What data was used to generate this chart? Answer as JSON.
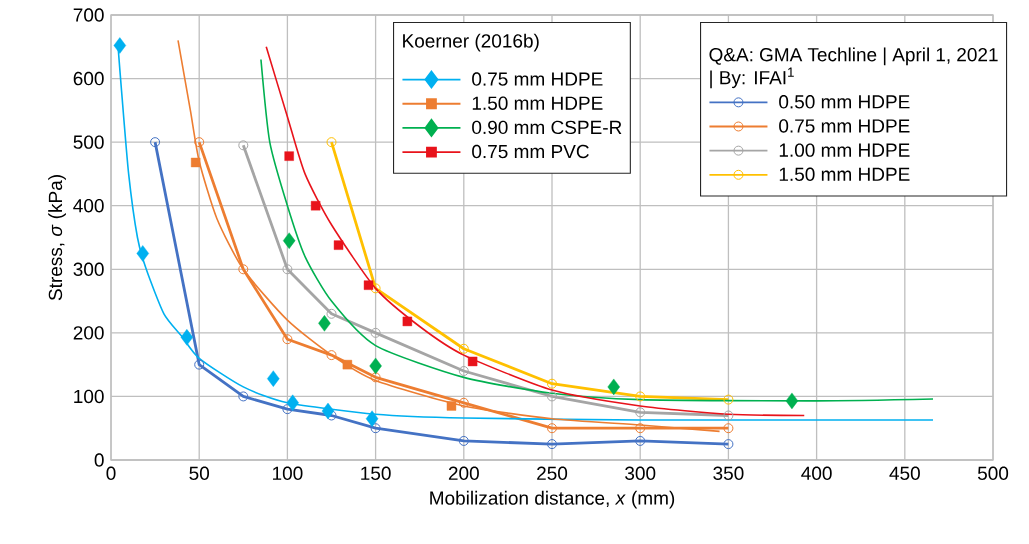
{
  "chart_data": {
    "type": "line",
    "xlabel": "Mobilization distance, *x* (mm)",
    "ylabel": "Stress, *σ* (kPa)",
    "legend_title": "Koerner (2016b)",
    "annotations": [
      "Q&A: GMA Techline | April 1, 2021 | By: IFAI$^{1}$"
    ],
    "xlim": [
      0,
      500
    ],
    "ylim": [
      0,
      700
    ],
    "xticks": [
      0,
      50,
      100,
      150,
      200,
      250,
      300,
      350,
      400,
      450,
      500
    ],
    "yticks": [
      0,
      100,
      200,
      300,
      400,
      500,
      600,
      700
    ],
    "grid": true,
    "legend": "top right",
    "series": [
      {
        "name": "0.75 mm HDPE",
        "type": "scatter",
        "marker": "diamond",
        "color": "#00b0f0",
        "x": [
          5,
          18,
          43,
          92,
          103,
          123,
          148
        ],
        "values": [
          652,
          325,
          193,
          128,
          90,
          77,
          65
        ]
      },
      {
        "name": "1.50 mm HDPE",
        "type": "scatter",
        "marker": "square",
        "color": "#ed7d31",
        "x": [
          48,
          134,
          193
        ],
        "values": [
          468,
          150,
          85
        ]
      },
      {
        "name": "0.90 mm CSPE-R",
        "type": "scatter",
        "marker": "diamond",
        "color": "#00b050",
        "x": [
          101,
          121,
          150,
          285,
          386
        ],
        "values": [
          345,
          215,
          148,
          115,
          93
        ]
      },
      {
        "name": "0.75 mm PVC",
        "type": "scatter",
        "marker": "square",
        "color": "#e8131b",
        "x": [
          101,
          116,
          129,
          146,
          168,
          205
        ],
        "values": [
          478,
          400,
          338,
          275,
          218,
          155
        ]
      },
      {
        "name": "0.50 mm HDPE",
        "marker": "circle",
        "color": "#4472c4",
        "x": [
          25,
          50,
          75,
          100,
          125,
          150,
          200,
          250,
          300,
          350
        ],
        "values": [
          500,
          150,
          100,
          80,
          70,
          50,
          30,
          25,
          30,
          25
        ]
      },
      {
        "name": "0.75 mm HDPE",
        "marker": "circle",
        "color": "#ed7d31",
        "x": [
          50,
          75,
          100,
          125,
          150,
          200,
          250,
          300,
          350
        ],
        "values": [
          500,
          300,
          190,
          165,
          130,
          90,
          50,
          50,
          50
        ]
      },
      {
        "name": "1.00 mm HDPE",
        "marker": "circle",
        "color": "#a5a5a5",
        "x": [
          75,
          100,
          125,
          150,
          200,
          250,
          300,
          350
        ],
        "values": [
          495,
          300,
          230,
          200,
          140,
          100,
          75,
          70
        ]
      },
      {
        "name": "1.50 mm HDPE",
        "marker": "circle",
        "color": "#ffc000",
        "x": [
          125,
          150,
          200,
          250,
          300,
          350
        ],
        "values": [
          500,
          270,
          175,
          120,
          100,
          95
        ]
      },
      {
        "marker": "none",
        "color": "#00b0f0",
        "x": [
          4,
          6,
          10,
          15,
          20,
          30,
          40,
          50,
          75,
          100,
          150,
          200,
          300,
          466
        ],
        "values": [
          650,
          580,
          450,
          350,
          300,
          230,
          195,
          160,
          115,
          90,
          72,
          66,
          63,
          63
        ]
      },
      {
        "marker": "none",
        "color": "#ed7d31",
        "x": [
          38,
          45,
          50,
          60,
          75,
          100,
          125,
          150,
          200,
          250,
          300,
          345
        ],
        "values": [
          660,
          550,
          470,
          380,
          300,
          220,
          165,
          125,
          85,
          65,
          55,
          45
        ]
      },
      {
        "marker": "none",
        "color": "#00b050",
        "x": [
          85,
          90,
          100,
          110,
          125,
          150,
          200,
          250,
          300,
          400,
          466
        ],
        "values": [
          630,
          500,
          400,
          320,
          250,
          180,
          130,
          105,
          95,
          93,
          96
        ]
      },
      {
        "marker": "none",
        "color": "#e8131b",
        "x": [
          88,
          100,
          110,
          125,
          150,
          175,
          200,
          250,
          300,
          350,
          393
        ],
        "values": [
          650,
          540,
          450,
          370,
          270,
          210,
          165,
          110,
          85,
          72,
          70
        ]
      }
    ]
  }
}
